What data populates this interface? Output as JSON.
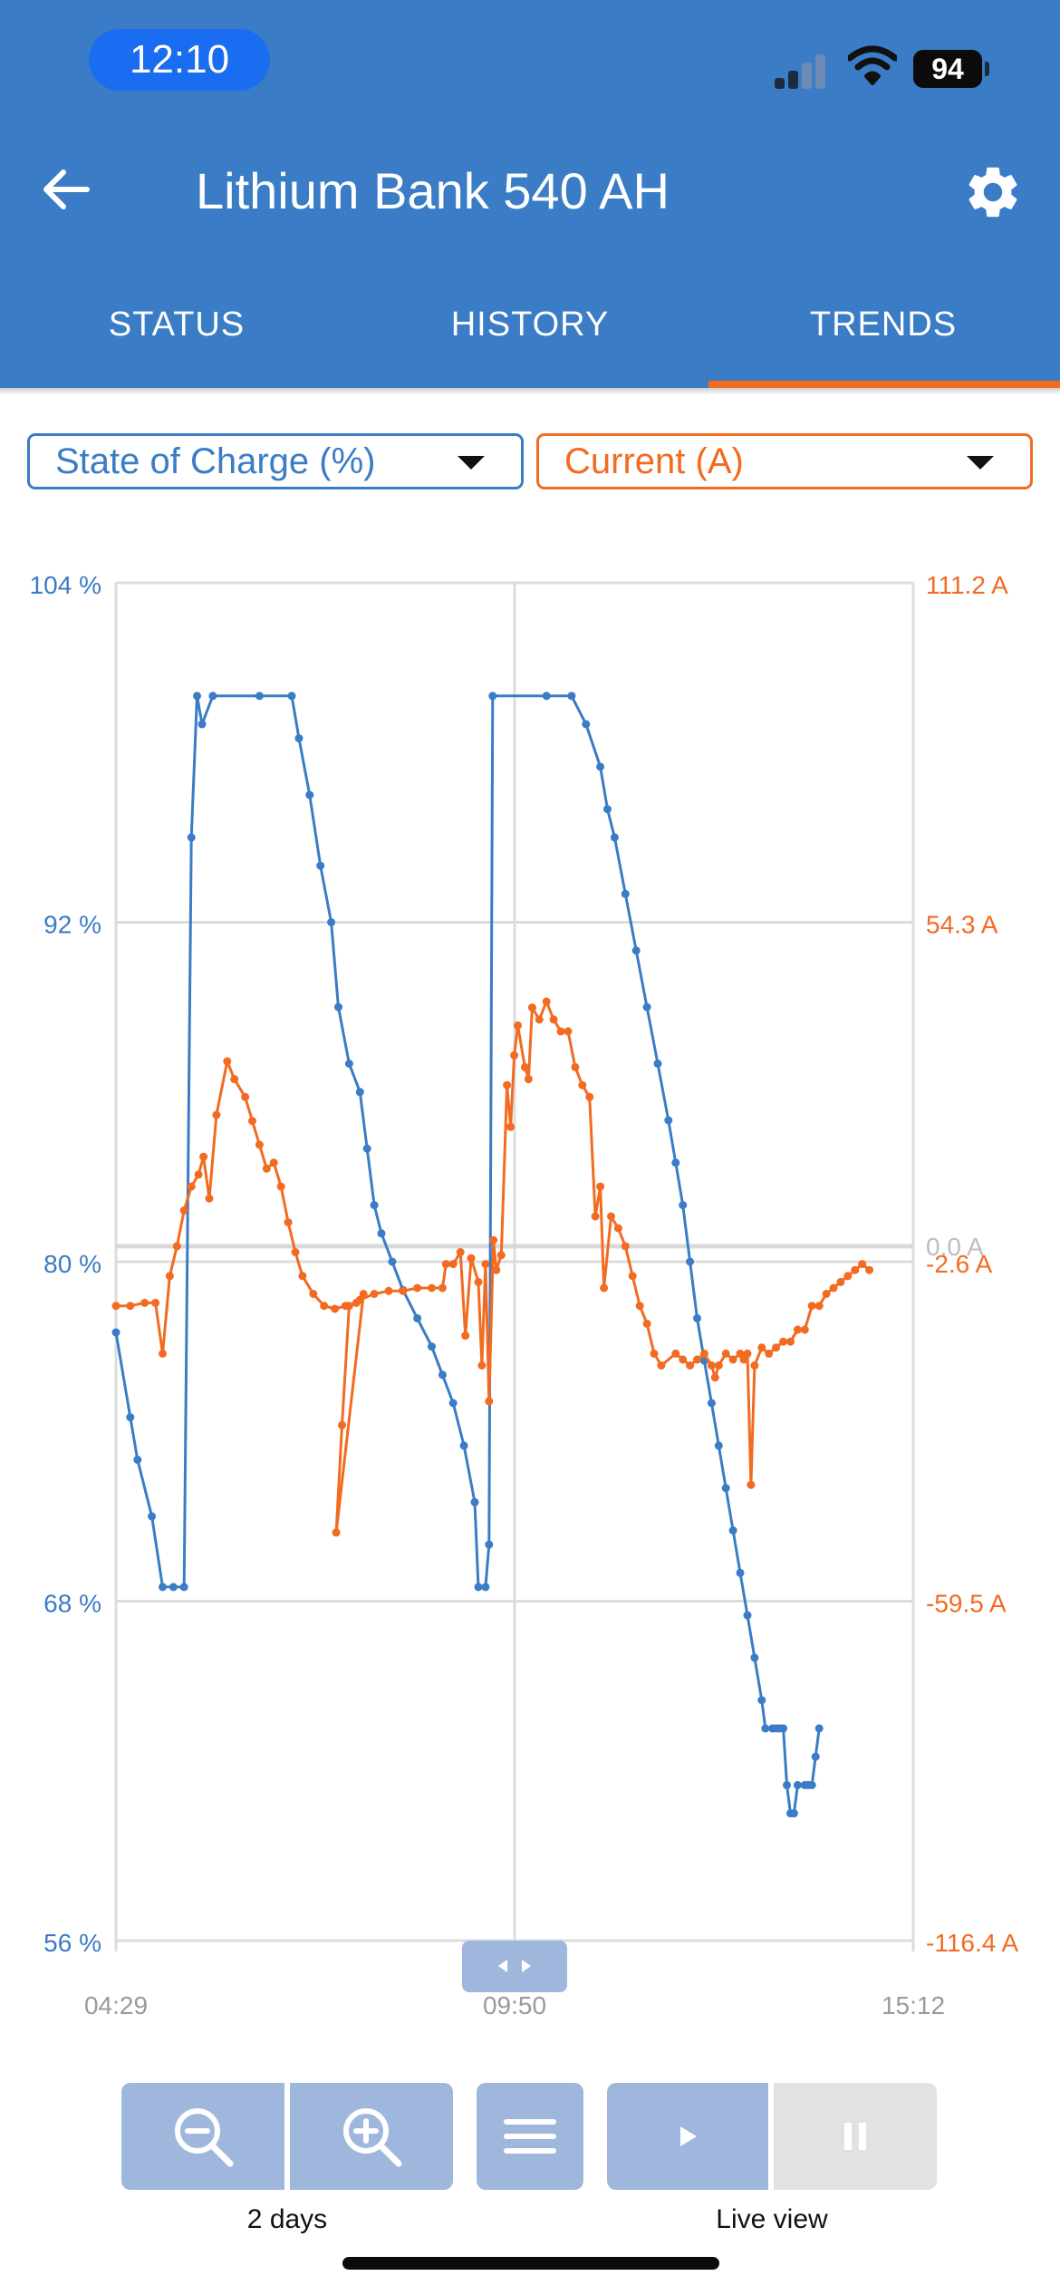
{
  "status_bar": {
    "time": "12:10",
    "battery": "94"
  },
  "header": {
    "title": "Lithium Bank 540 AH",
    "back_icon": "arrow-left-icon",
    "settings_icon": "gear-icon",
    "tabs": [
      {
        "label": "STATUS",
        "active": false
      },
      {
        "label": "HISTORY",
        "active": false
      },
      {
        "label": "TRENDS",
        "active": true
      }
    ],
    "colors": {
      "header": "#3a7cc5",
      "active_tab_underline": "#f26b21"
    }
  },
  "selectors": {
    "left": {
      "selected": "State of Charge (%)",
      "color": "#3a7cc5"
    },
    "right": {
      "selected": "Current (A)",
      "color": "#f26b21"
    }
  },
  "chart_data": {
    "type": "line",
    "x_ticks": [
      "04:29",
      "09:50",
      "15:12"
    ],
    "y_left_ticks": [
      "104 %",
      "92 %",
      "80 %",
      "68 %",
      "56 %"
    ],
    "y_left_range": [
      56,
      104
    ],
    "y_right_ticks": [
      "111.2 A",
      "54.3 A",
      "-2.6 A",
      "-59.5 A",
      "-116.4 A"
    ],
    "y_right_range": [
      -116.4,
      111.2
    ],
    "zero_label": "0.0 A",
    "series": [
      {
        "color": "#3a7cc5",
        "axis": "left",
        "points": [
          [
            0,
            77.5
          ],
          [
            0.02,
            74.5
          ],
          [
            0.03,
            73
          ],
          [
            0.05,
            71
          ],
          [
            0.065,
            68.5
          ],
          [
            0.08,
            68.5
          ],
          [
            0.095,
            68.5
          ],
          [
            0.105,
            95
          ],
          [
            0.113,
            100
          ],
          [
            0.12,
            99
          ],
          [
            0.135,
            100
          ],
          [
            0.2,
            100
          ],
          [
            0.245,
            100
          ],
          [
            0.255,
            98.5
          ],
          [
            0.27,
            96.5
          ],
          [
            0.285,
            94
          ],
          [
            0.3,
            92
          ],
          [
            0.31,
            89
          ],
          [
            0.325,
            87
          ],
          [
            0.34,
            86
          ],
          [
            0.35,
            84
          ],
          [
            0.36,
            82
          ],
          [
            0.37,
            81
          ],
          [
            0.385,
            80
          ],
          [
            0.4,
            79
          ],
          [
            0.42,
            78
          ],
          [
            0.44,
            77
          ],
          [
            0.455,
            76
          ],
          [
            0.47,
            75
          ],
          [
            0.485,
            73.5
          ],
          [
            0.5,
            71.5
          ],
          [
            0.505,
            68.5
          ],
          [
            0.515,
            68.5
          ],
          [
            0.52,
            70
          ],
          [
            0.525,
            100
          ],
          [
            0.6,
            100
          ],
          [
            0.635,
            100
          ],
          [
            0.655,
            99
          ],
          [
            0.675,
            97.5
          ],
          [
            0.685,
            96
          ],
          [
            0.695,
            95
          ],
          [
            0.71,
            93
          ],
          [
            0.725,
            91
          ],
          [
            0.74,
            89
          ],
          [
            0.755,
            87
          ],
          [
            0.77,
            85
          ],
          [
            0.78,
            83.5
          ],
          [
            0.79,
            82
          ],
          [
            0.8,
            80
          ],
          [
            0.81,
            78
          ],
          [
            0.82,
            76.5
          ],
          [
            0.83,
            75
          ],
          [
            0.84,
            73.5
          ],
          [
            0.85,
            72
          ],
          [
            0.86,
            70.5
          ],
          [
            0.87,
            69
          ],
          [
            0.88,
            67.5
          ],
          [
            0.89,
            66
          ],
          [
            0.9,
            64.5
          ],
          [
            0.905,
            63.5
          ],
          [
            0.915,
            63.5
          ],
          [
            0.92,
            63.5
          ],
          [
            0.925,
            63.5
          ],
          [
            0.93,
            63.5
          ],
          [
            0.935,
            61.5
          ],
          [
            0.94,
            60.5
          ],
          [
            0.945,
            60.5
          ],
          [
            0.95,
            61.5
          ],
          [
            0.96,
            61.5
          ],
          [
            0.965,
            61.5
          ],
          [
            0.97,
            61.5
          ],
          [
            0.975,
            62.5
          ],
          [
            0.98,
            63.5
          ]
        ]
      },
      {
        "color": "#f26b21",
        "axis": "right",
        "points": [
          [
            0,
            -10
          ],
          [
            0.02,
            -10
          ],
          [
            0.04,
            -9.5
          ],
          [
            0.055,
            -9.5
          ],
          [
            0.065,
            -18
          ],
          [
            0.075,
            -5
          ],
          [
            0.085,
            0
          ],
          [
            0.095,
            6
          ],
          [
            0.105,
            10
          ],
          [
            0.115,
            12
          ],
          [
            0.122,
            15
          ],
          [
            0.13,
            8
          ],
          [
            0.14,
            22
          ],
          [
            0.155,
            31
          ],
          [
            0.165,
            28
          ],
          [
            0.18,
            25
          ],
          [
            0.19,
            21
          ],
          [
            0.2,
            17
          ],
          [
            0.21,
            13
          ],
          [
            0.22,
            14
          ],
          [
            0.23,
            10
          ],
          [
            0.24,
            4
          ],
          [
            0.25,
            -1
          ],
          [
            0.26,
            -5
          ],
          [
            0.275,
            -8
          ],
          [
            0.29,
            -10
          ],
          [
            0.305,
            -10.5
          ],
          [
            0.32,
            -10
          ],
          [
            0.335,
            -9.5
          ],
          [
            0.345,
            -8
          ],
          [
            0.307,
            -48
          ],
          [
            0.315,
            -30
          ],
          [
            0.325,
            -10
          ],
          [
            0.34,
            -9
          ],
          [
            0.36,
            -8
          ],
          [
            0.38,
            -7.5
          ],
          [
            0.4,
            -7.5
          ],
          [
            0.42,
            -7
          ],
          [
            0.44,
            -7
          ],
          [
            0.455,
            -7
          ],
          [
            0.46,
            -3
          ],
          [
            0.47,
            -3
          ],
          [
            0.48,
            -1
          ],
          [
            0.487,
            -15
          ],
          [
            0.495,
            -2
          ],
          [
            0.505,
            -6
          ],
          [
            0.51,
            -20
          ],
          [
            0.515,
            -3
          ],
          [
            0.52,
            -26
          ],
          [
            0.526,
            1
          ],
          [
            0.53,
            -4
          ],
          [
            0.537,
            -1.5
          ],
          [
            0.545,
            27
          ],
          [
            0.55,
            20
          ],
          [
            0.555,
            32
          ],
          [
            0.56,
            37
          ],
          [
            0.57,
            30
          ],
          [
            0.575,
            28
          ],
          [
            0.58,
            40
          ],
          [
            0.59,
            38
          ],
          [
            0.6,
            41
          ],
          [
            0.61,
            38
          ],
          [
            0.62,
            36
          ],
          [
            0.63,
            36
          ],
          [
            0.64,
            30
          ],
          [
            0.65,
            27
          ],
          [
            0.66,
            25
          ],
          [
            0.668,
            5
          ],
          [
            0.675,
            10
          ],
          [
            0.68,
            -7
          ],
          [
            0.69,
            5
          ],
          [
            0.7,
            3
          ],
          [
            0.71,
            0
          ],
          [
            0.72,
            -5
          ],
          [
            0.73,
            -10
          ],
          [
            0.74,
            -13
          ],
          [
            0.75,
            -18
          ],
          [
            0.76,
            -20
          ],
          [
            0.78,
            -18
          ],
          [
            0.79,
            -19
          ],
          [
            0.8,
            -20
          ],
          [
            0.81,
            -19
          ],
          [
            0.82,
            -18
          ],
          [
            0.83,
            -20
          ],
          [
            0.835,
            -22
          ],
          [
            0.84,
            -20
          ],
          [
            0.85,
            -18
          ],
          [
            0.86,
            -19
          ],
          [
            0.87,
            -18
          ],
          [
            0.875,
            -19
          ],
          [
            0.88,
            -18
          ],
          [
            0.885,
            -40
          ],
          [
            0.89,
            -20
          ],
          [
            0.9,
            -17
          ],
          [
            0.91,
            -18
          ],
          [
            0.92,
            -17
          ],
          [
            0.93,
            -16
          ],
          [
            0.94,
            -16
          ],
          [
            0.95,
            -14
          ],
          [
            0.96,
            -14
          ],
          [
            0.97,
            -10
          ],
          [
            0.98,
            -10
          ],
          [
            0.99,
            -8
          ],
          [
            1.0,
            -7
          ],
          [
            1.01,
            -6
          ],
          [
            1.02,
            -5
          ],
          [
            1.03,
            -4
          ],
          [
            1.04,
            -3
          ],
          [
            1.05,
            -4
          ]
        ]
      }
    ],
    "grid": true,
    "range_handle": "pan-handle-icon"
  },
  "toolbar": {
    "zoom_out_icon": "zoom-out-icon",
    "zoom_in_icon": "zoom-in-icon",
    "menu_icon": "hamburger-menu-icon",
    "play_icon": "play-icon",
    "pause_icon": "pause-icon",
    "zoom_caption": "2 days",
    "live_caption": "Live view"
  }
}
